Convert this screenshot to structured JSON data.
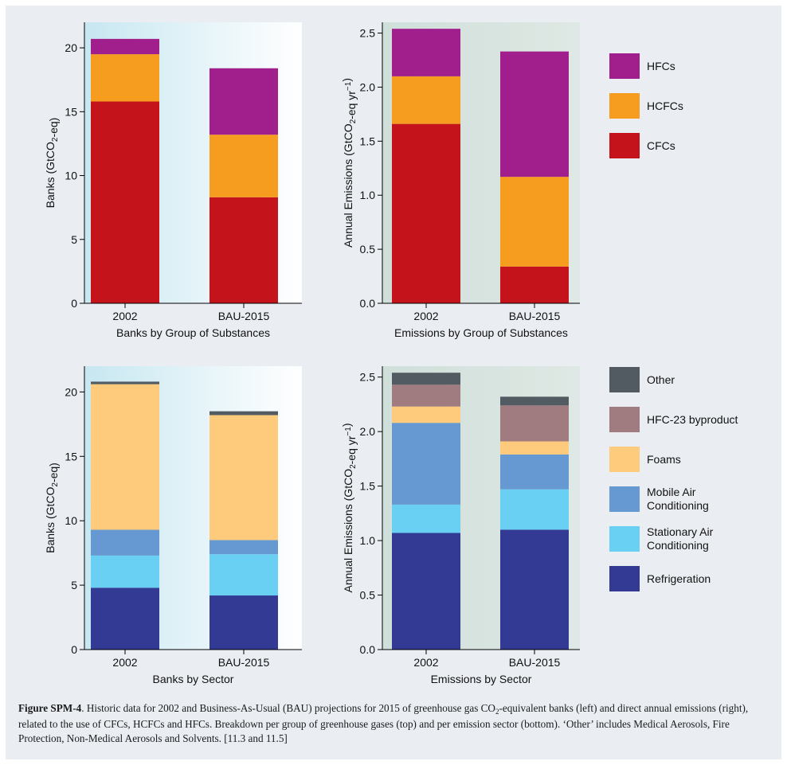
{
  "chart_data": [
    {
      "type": "bar",
      "stacked": true,
      "categories": [
        "2002",
        "BAU-2015"
      ],
      "xlabel": "Banks by Group of Substances",
      "ylabel": "Banks (GtCO₂-eq)",
      "ylim": [
        0,
        22
      ],
      "yticks": [
        0,
        5,
        10,
        15,
        20
      ],
      "series": [
        {
          "name": "CFCs",
          "color": "#c4131a",
          "values": [
            15.8,
            8.3
          ]
        },
        {
          "name": "HCFCs",
          "color": "#f69c1f",
          "values": [
            3.7,
            4.9
          ]
        },
        {
          "name": "HFCs",
          "color": "#a11f8c",
          "values": [
            1.2,
            5.2
          ]
        }
      ]
    },
    {
      "type": "bar",
      "stacked": true,
      "categories": [
        "2002",
        "BAU-2015"
      ],
      "xlabel": "Emissions by Group of Substances",
      "ylabel": "Annual Emissions (GtCO₂-eq yr⁻¹)",
      "ylim": [
        0,
        2.6
      ],
      "yticks": [
        0.0,
        0.5,
        1.0,
        1.5,
        2.0,
        2.5
      ],
      "series": [
        {
          "name": "CFCs",
          "color": "#c4131a",
          "values": [
            1.66,
            0.34
          ]
        },
        {
          "name": "HCFCs",
          "color": "#f69c1f",
          "values": [
            0.44,
            0.83
          ]
        },
        {
          "name": "HFCs",
          "color": "#a11f8c",
          "values": [
            0.44,
            1.16
          ]
        }
      ]
    },
    {
      "type": "bar",
      "stacked": true,
      "categories": [
        "2002",
        "BAU-2015"
      ],
      "xlabel": "Banks by Sector",
      "ylabel": "Banks (GtCO₂-eq)",
      "ylim": [
        0,
        22
      ],
      "yticks": [
        0,
        5,
        10,
        15,
        20
      ],
      "series": [
        {
          "name": "Refrigeration",
          "color": "#323a94",
          "values": [
            4.8,
            4.2
          ]
        },
        {
          "name": "Stationary Air Conditioning",
          "color": "#69cff3",
          "values": [
            2.5,
            3.2
          ]
        },
        {
          "name": "Mobile Air Conditioning",
          "color": "#6699d1",
          "values": [
            2.0,
            1.1
          ]
        },
        {
          "name": "Foams",
          "color": "#fdcb7b",
          "values": [
            11.3,
            9.7
          ]
        },
        {
          "name": "HFC-23 byproduct",
          "color": "#a07c80",
          "values": [
            0.0,
            0.0
          ]
        },
        {
          "name": "Other",
          "color": "#535b62",
          "values": [
            0.2,
            0.3
          ]
        }
      ]
    },
    {
      "type": "bar",
      "stacked": true,
      "categories": [
        "2002",
        "BAU-2015"
      ],
      "xlabel": "Emissions by Sector",
      "ylabel": "Annual Emissions (GtCO₂-eq yr⁻¹)",
      "ylim": [
        0,
        2.6
      ],
      "yticks": [
        0.0,
        0.5,
        1.0,
        1.5,
        2.0,
        2.5
      ],
      "series": [
        {
          "name": "Refrigeration",
          "color": "#323a94",
          "values": [
            1.07,
            1.1
          ]
        },
        {
          "name": "Stationary Air Conditioning",
          "color": "#69cff3",
          "values": [
            0.26,
            0.37
          ]
        },
        {
          "name": "Mobile Air Conditioning",
          "color": "#6699d1",
          "values": [
            0.75,
            0.32
          ]
        },
        {
          "name": "Foams",
          "color": "#fdcb7b",
          "values": [
            0.15,
            0.12
          ]
        },
        {
          "name": "HFC-23 byproduct",
          "color": "#a07c80",
          "values": [
            0.2,
            0.33
          ]
        },
        {
          "name": "Other",
          "color": "#535b62",
          "values": [
            0.11,
            0.08
          ]
        }
      ]
    }
  ],
  "legends": [
    {
      "items": [
        {
          "label": "HFCs",
          "color": "#a11f8c"
        },
        {
          "label": "HCFCs",
          "color": "#f69c1f"
        },
        {
          "label": "CFCs",
          "color": "#c4131a"
        }
      ]
    },
    {
      "items": [
        {
          "label": "Other",
          "color": "#535b62"
        },
        {
          "label": "HFC-23 byproduct",
          "color": "#a07c80"
        },
        {
          "label": "Foams",
          "color": "#fdcb7b"
        },
        {
          "label": "Mobile Air\nConditioning",
          "color": "#6699d1"
        },
        {
          "label": "Stationary Air\nConditioning",
          "color": "#69cff3"
        },
        {
          "label": "Refrigeration",
          "color": "#323a94"
        }
      ]
    }
  ],
  "caption": {
    "label": "Figure SPM-4",
    "text_before_sub": ". Historic data for 2002 and Business-As-Usual (BAU) projections for 2015 of greenhouse gas CO",
    "sub": "2",
    "text_after_sub": "-equivalent banks (left) and direct annual emissions (right), related to the use of CFCs, HCFCs and HFCs. Breakdown per group of greenhouse gases (top) and per emission sector (bottom). ‘Other’ includes Medical Aerosols, Fire Protection, Non-Medical Aerosols and Solvents. [11.3 and 11.5]"
  }
}
